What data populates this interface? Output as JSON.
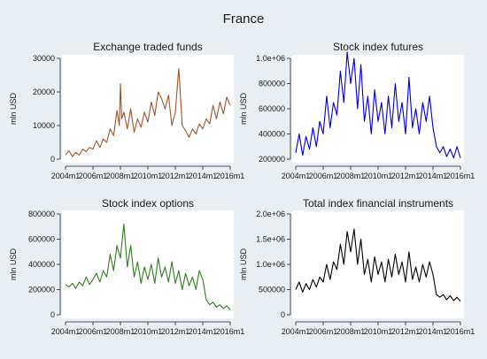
{
  "figure": {
    "title": "France"
  },
  "chart_data": [
    {
      "type": "line",
      "title": "Exchange traded funds",
      "ylabel": "mln USD",
      "xlabel": "",
      "x_ticks": [
        "2004m1",
        "2006m1",
        "2008m1",
        "2010m1",
        "2012m1",
        "2014m1",
        "2016m1"
      ],
      "y_ticks": [
        "0",
        "10000",
        "20000",
        "30000"
      ],
      "y_tick_values": [
        0,
        10000,
        20000,
        30000
      ],
      "ylim": [
        0,
        30000
      ],
      "xlim": [
        2004.0,
        2016.0
      ],
      "grid": false,
      "series": [
        {
          "color": "#a0522d",
          "x": [
            2004.0,
            2004.25,
            2004.5,
            2004.75,
            2005.0,
            2005.25,
            2005.5,
            2005.75,
            2006.0,
            2006.25,
            2006.5,
            2006.75,
            2007.0,
            2007.25,
            2007.5,
            2007.75,
            2007.92,
            2008.0,
            2008.1,
            2008.25,
            2008.5,
            2008.75,
            2009.0,
            2009.25,
            2009.5,
            2009.75,
            2010.0,
            2010.25,
            2010.5,
            2010.75,
            2011.0,
            2011.25,
            2011.5,
            2011.75,
            2012.0,
            2012.25,
            2012.5,
            2012.75,
            2013.0,
            2013.25,
            2013.5,
            2013.75,
            2014.0,
            2014.25,
            2014.5,
            2014.75,
            2015.0,
            2015.25,
            2015.5,
            2015.75,
            2016.0
          ],
          "y": [
            1200,
            2500,
            800,
            2000,
            1200,
            3000,
            2200,
            3500,
            3000,
            5500,
            3500,
            6000,
            5000,
            9000,
            7000,
            14500,
            10000,
            22500,
            12000,
            14000,
            9000,
            15000,
            8000,
            12000,
            9500,
            14000,
            11000,
            17000,
            13000,
            20000,
            18000,
            15000,
            19000,
            10000,
            14000,
            27000,
            10000,
            8500,
            6500,
            9000,
            7500,
            10500,
            9000,
            12000,
            10500,
            16000,
            12000,
            17000,
            13500,
            18500,
            16000
          ]
        }
      ]
    },
    {
      "type": "line",
      "title": "Stock index futures",
      "ylabel": "mln USD",
      "xlabel": "",
      "x_ticks": [
        "2004m1",
        "2006m1",
        "2008m1",
        "2010m1",
        "2012m1",
        "2014m1",
        "2016m1"
      ],
      "y_ticks": [
        "200000",
        "400000",
        "600000",
        "800000",
        "1.0e+06"
      ],
      "y_tick_values": [
        200000,
        400000,
        600000,
        800000,
        1000000
      ],
      "ylim": [
        200000,
        1000000
      ],
      "xlim": [
        2004.0,
        2016.0
      ],
      "grid": false,
      "series": [
        {
          "color": "#0000cc",
          "x": [
            2004.0,
            2004.25,
            2004.5,
            2004.75,
            2005.0,
            2005.25,
            2005.5,
            2005.75,
            2006.0,
            2006.25,
            2006.5,
            2006.75,
            2007.0,
            2007.25,
            2007.5,
            2007.75,
            2008.0,
            2008.25,
            2008.5,
            2008.75,
            2009.0,
            2009.25,
            2009.5,
            2009.75,
            2010.0,
            2010.25,
            2010.5,
            2010.75,
            2011.0,
            2011.25,
            2011.5,
            2011.75,
            2012.0,
            2012.25,
            2012.5,
            2012.75,
            2013.0,
            2013.25,
            2013.5,
            2013.75,
            2014.0,
            2014.25,
            2014.5,
            2014.75,
            2015.0,
            2015.25,
            2015.5,
            2015.75,
            2016.0
          ],
          "y": [
            250000,
            400000,
            230000,
            380000,
            280000,
            450000,
            300000,
            500000,
            400000,
            700000,
            450000,
            650000,
            550000,
            900000,
            650000,
            1050000,
            800000,
            1000000,
            600000,
            950000,
            500000,
            700000,
            400000,
            750000,
            500000,
            650000,
            400000,
            700000,
            450000,
            800000,
            500000,
            650000,
            400000,
            850000,
            450000,
            600000,
            400000,
            650000,
            500000,
            700000,
            450000,
            300000,
            250000,
            300000,
            220000,
            280000,
            210000,
            300000,
            210000
          ]
        }
      ]
    },
    {
      "type": "line",
      "title": "Stock index options",
      "ylabel": "mln USD",
      "xlabel": "",
      "x_ticks": [
        "2004m1",
        "2006m1",
        "2008m1",
        "2010m1",
        "2012m1",
        "2014m1",
        "2016m1"
      ],
      "y_ticks": [
        "0",
        "200000",
        "400000",
        "600000",
        "800000"
      ],
      "y_tick_values": [
        0,
        200000,
        400000,
        600000,
        800000
      ],
      "ylim": [
        0,
        800000
      ],
      "xlim": [
        2004.0,
        2016.0
      ],
      "grid": false,
      "series": [
        {
          "color": "#2e7d1e",
          "x": [
            2004.0,
            2004.25,
            2004.5,
            2004.75,
            2005.0,
            2005.25,
            2005.5,
            2005.75,
            2006.0,
            2006.25,
            2006.5,
            2006.75,
            2007.0,
            2007.25,
            2007.5,
            2007.75,
            2008.0,
            2008.25,
            2008.5,
            2008.75,
            2009.0,
            2009.25,
            2009.5,
            2009.75,
            2010.0,
            2010.25,
            2010.5,
            2010.75,
            2011.0,
            2011.25,
            2011.5,
            2011.75,
            2012.0,
            2012.25,
            2012.5,
            2012.75,
            2013.0,
            2013.25,
            2013.5,
            2013.75,
            2014.0,
            2014.25,
            2014.5,
            2014.75,
            2015.0,
            2015.25,
            2015.5,
            2015.75,
            2016.0
          ],
          "y": [
            240000,
            220000,
            250000,
            210000,
            260000,
            230000,
            300000,
            240000,
            280000,
            330000,
            260000,
            350000,
            300000,
            480000,
            350000,
            550000,
            450000,
            720000,
            380000,
            550000,
            300000,
            420000,
            250000,
            380000,
            280000,
            400000,
            250000,
            450000,
            300000,
            380000,
            260000,
            420000,
            250000,
            350000,
            200000,
            330000,
            230000,
            300000,
            200000,
            350000,
            280000,
            120000,
            80000,
            100000,
            60000,
            80000,
            50000,
            70000,
            40000
          ]
        }
      ]
    },
    {
      "type": "line",
      "title": "Total index financial instruments",
      "ylabel": "mln USD",
      "xlabel": "",
      "x_ticks": [
        "2004m1",
        "2006m1",
        "2008m1",
        "2010m1",
        "2012m1",
        "2014m1",
        "2016m1"
      ],
      "y_ticks": [
        "0",
        "500000",
        "1.0e+06",
        "1.5e+06",
        "2.0e+06"
      ],
      "y_tick_values": [
        0,
        500000,
        1000000,
        1500000,
        2000000
      ],
      "ylim": [
        0,
        2000000
      ],
      "xlim": [
        2004.0,
        2016.0
      ],
      "grid": false,
      "series": [
        {
          "color": "#000000",
          "x": [
            2004.0,
            2004.25,
            2004.5,
            2004.75,
            2005.0,
            2005.25,
            2005.5,
            2005.75,
            2006.0,
            2006.25,
            2006.5,
            2006.75,
            2007.0,
            2007.25,
            2007.5,
            2007.75,
            2008.0,
            2008.25,
            2008.5,
            2008.75,
            2009.0,
            2009.25,
            2009.5,
            2009.75,
            2010.0,
            2010.25,
            2010.5,
            2010.75,
            2011.0,
            2011.25,
            2011.5,
            2011.75,
            2012.0,
            2012.25,
            2012.5,
            2012.75,
            2013.0,
            2013.25,
            2013.5,
            2013.75,
            2014.0,
            2014.25,
            2014.5,
            2014.75,
            2015.0,
            2015.25,
            2015.5,
            2015.75,
            2016.0
          ],
          "y": [
            500000,
            650000,
            450000,
            620000,
            500000,
            700000,
            550000,
            750000,
            650000,
            1000000,
            700000,
            1050000,
            900000,
            1400000,
            1000000,
            1650000,
            1250000,
            1700000,
            1000000,
            1500000,
            800000,
            1100000,
            650000,
            1150000,
            800000,
            1050000,
            650000,
            1100000,
            750000,
            1200000,
            800000,
            1050000,
            650000,
            1250000,
            700000,
            950000,
            650000,
            1000000,
            750000,
            1050000,
            800000,
            400000,
            350000,
            400000,
            300000,
            380000,
            280000,
            350000,
            270000
          ]
        }
      ]
    }
  ]
}
